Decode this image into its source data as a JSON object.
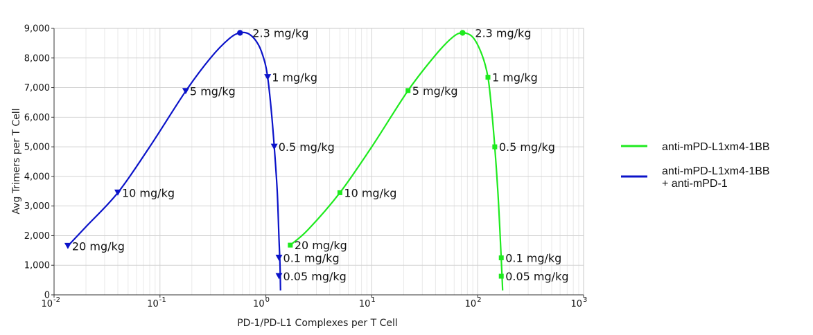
{
  "chart_data": {
    "type": "line",
    "title": "",
    "xlabel": "PD-1/PD-L1 Complexes per T Cell",
    "ylabel": "Avg Trimers per T Cell",
    "x_scale": "log",
    "xlim": [
      0.01,
      1000
    ],
    "ylim": [
      0,
      9000
    ],
    "grid": true,
    "legend_position": "right",
    "x_ticks": [
      {
        "value": 0.01,
        "base": "10",
        "exp": "-2"
      },
      {
        "value": 0.1,
        "base": "10",
        "exp": "-1"
      },
      {
        "value": 1,
        "base": "10",
        "exp": "0"
      },
      {
        "value": 10,
        "base": "10",
        "exp": "1"
      },
      {
        "value": 100,
        "base": "10",
        "exp": "2"
      },
      {
        "value": 1000,
        "base": "10",
        "exp": "3"
      }
    ],
    "y_ticks": [
      {
        "value": 0,
        "label": "0"
      },
      {
        "value": 1000,
        "label": "1,000"
      },
      {
        "value": 2000,
        "label": "2,000"
      },
      {
        "value": 3000,
        "label": "3,000"
      },
      {
        "value": 4000,
        "label": "4,000"
      },
      {
        "value": 5000,
        "label": "5,000"
      },
      {
        "value": 6000,
        "label": "6,000"
      },
      {
        "value": 7000,
        "label": "7,000"
      },
      {
        "value": 8000,
        "label": "8,000"
      },
      {
        "value": 9000,
        "label": "9,000"
      }
    ],
    "series": [
      {
        "name": "anti-mPD-L1xm4-1BB + anti-mPD-1",
        "legend_lines": [
          "anti-mPD-L1xm4-1BB",
          "+ anti-mPD-1"
        ],
        "color": "#0b13c9",
        "marker": "triangle-down",
        "curve": [
          [
            0.0135,
            1650
          ],
          [
            0.02,
            2300
          ],
          [
            0.04,
            3450
          ],
          [
            0.08,
            5000
          ],
          [
            0.175,
            6880
          ],
          [
            0.3,
            8000
          ],
          [
            0.45,
            8650
          ],
          [
            0.57,
            8850
          ],
          [
            0.7,
            8800
          ],
          [
            0.85,
            8450
          ],
          [
            0.97,
            7900
          ],
          [
            1.04,
            7350
          ],
          [
            1.12,
            6300
          ],
          [
            1.2,
            5000
          ],
          [
            1.28,
            3500
          ],
          [
            1.33,
            1900
          ],
          [
            1.36,
            1000
          ],
          [
            1.375,
            150
          ]
        ],
        "points": [
          {
            "x": 0.0135,
            "y": 1650,
            "label": "20 mg/kg"
          },
          {
            "x": 0.04,
            "y": 3450,
            "label": "10 mg/kg"
          },
          {
            "x": 0.175,
            "y": 6880,
            "label": "5 mg/kg"
          },
          {
            "x": 0.57,
            "y": 8850,
            "label": "2.3 mg/kg",
            "marker": "circle"
          },
          {
            "x": 1.04,
            "y": 7350,
            "label": "1 mg/kg"
          },
          {
            "x": 1.2,
            "y": 5000,
            "label": "0.5 mg/kg"
          },
          {
            "x": 1.33,
            "y": 1250,
            "label": "0.1 mg/kg"
          },
          {
            "x": 1.33,
            "y": 630,
            "label": "0.05 mg/kg"
          }
        ]
      },
      {
        "name": "anti-mPD-L1xm4-1BB",
        "legend_lines": [
          "anti-mPD-L1xm4-1BB"
        ],
        "color": "#1eea1e",
        "marker": "square",
        "curve": [
          [
            1.7,
            1680
          ],
          [
            2.5,
            2200
          ],
          [
            5,
            3450
          ],
          [
            10,
            5000
          ],
          [
            22,
            6900
          ],
          [
            40,
            8100
          ],
          [
            58,
            8700
          ],
          [
            72,
            8850
          ],
          [
            90,
            8700
          ],
          [
            110,
            8100
          ],
          [
            125,
            7350
          ],
          [
            135,
            6300
          ],
          [
            145,
            5000
          ],
          [
            155,
            3500
          ],
          [
            162,
            2200
          ],
          [
            167,
            1200
          ],
          [
            170,
            600
          ],
          [
            172,
            150
          ]
        ],
        "points": [
          {
            "x": 1.7,
            "y": 1680,
            "label": "20 mg/kg"
          },
          {
            "x": 5,
            "y": 3450,
            "label": "10 mg/kg"
          },
          {
            "x": 22,
            "y": 6900,
            "label": "5 mg/kg"
          },
          {
            "x": 72,
            "y": 8850,
            "label": "2.3 mg/kg",
            "marker": "circle"
          },
          {
            "x": 125,
            "y": 7350,
            "label": "1 mg/kg"
          },
          {
            "x": 145,
            "y": 5000,
            "label": "0.5 mg/kg"
          },
          {
            "x": 167,
            "y": 1250,
            "label": "0.1 mg/kg"
          },
          {
            "x": 167,
            "y": 630,
            "label": "0.05 mg/kg"
          }
        ]
      }
    ],
    "legend_order": [
      1,
      0
    ]
  }
}
